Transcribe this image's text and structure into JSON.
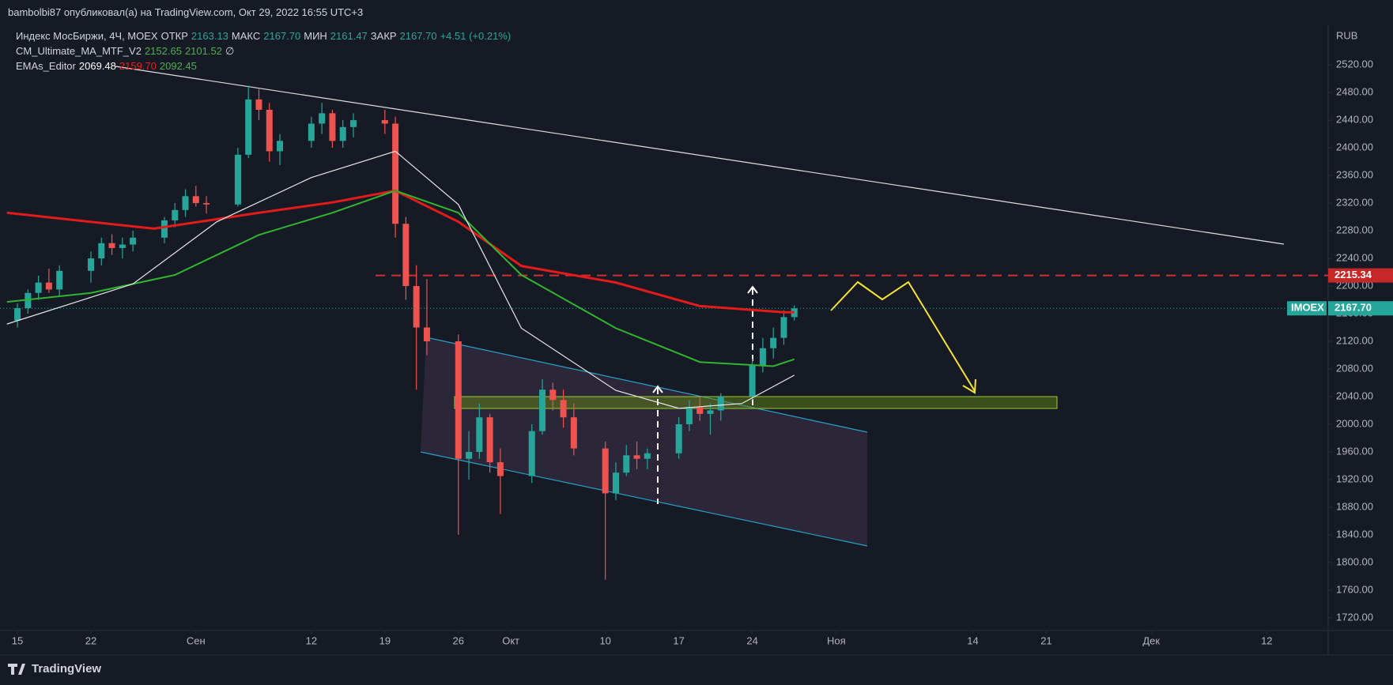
{
  "header": {
    "text": "bambolbi87 опубликовал(а) на TradingView.com, Окт 29, 2022 16:55 UTC+3"
  },
  "footer": {
    "brand": "TradingView"
  },
  "chart_data": {
    "type": "candlestick",
    "legend": [
      [
        {
          "text": "Индекс МосБиржи, 4Ч, MOEX",
          "color": "#d1d4dc"
        },
        {
          "text": "ОТКР",
          "color": "#d1d4dc"
        },
        {
          "text": "2163.13",
          "color": "#26a69a"
        },
        {
          "text": "МАКС",
          "color": "#d1d4dc"
        },
        {
          "text": "2167.70",
          "color": "#26a69a"
        },
        {
          "text": "МИН",
          "color": "#d1d4dc"
        },
        {
          "text": "2161.47",
          "color": "#26a69a"
        },
        {
          "text": "ЗАКР",
          "color": "#d1d4dc"
        },
        {
          "text": "2167.70",
          "color": "#26a69a"
        },
        {
          "text": "+4.51 (+0.21%)",
          "color": "#26a69a"
        }
      ],
      [
        {
          "text": "CM_Ultimate_MA_MTF_V2",
          "color": "#d1d4dc"
        },
        {
          "text": "2152.65",
          "color": "#4caf50"
        },
        {
          "text": "2101.52",
          "color": "#4caf50"
        },
        {
          "text": "∅",
          "color": "#d1d4dc"
        }
      ],
      [
        {
          "text": "EMAs_Editor",
          "color": "#d1d4dc"
        },
        {
          "text": "2069.48",
          "color": "#ffffff"
        },
        {
          "text": "2159.70",
          "color": "#e91e1e"
        },
        {
          "text": "2092.45",
          "color": "#4caf50"
        }
      ]
    ],
    "currency": "RUB",
    "up_color": "#26a69a",
    "down_color": "#ef5350",
    "x": [
      0,
      1,
      2,
      3,
      4,
      7,
      8,
      9,
      10,
      11,
      14,
      15,
      16,
      17,
      18,
      21,
      22,
      23,
      24,
      25,
      28,
      29,
      30,
      31,
      32,
      35,
      36,
      37,
      38,
      39,
      42,
      43,
      44,
      45,
      46,
      49,
      50,
      51,
      52,
      53,
      56,
      57,
      58,
      59,
      60,
      63,
      64,
      65,
      66,
      67,
      70,
      71,
      72,
      73,
      74
    ],
    "open": [
      2150,
      2168,
      2190,
      2205,
      2195,
      2222,
      2240,
      2262,
      2255,
      2260,
      2270,
      2295,
      2310,
      2330,
      2320,
      2318,
      2390,
      2470,
      2455,
      2395,
      2410,
      2435,
      2450,
      2410,
      2430,
      2440,
      2435,
      2290,
      2200,
      2140,
      2120,
      1950,
      1960,
      2010,
      1945,
      1925,
      1990,
      2050,
      2035,
      2010,
      1965,
      1900,
      1930,
      1955,
      1950,
      1958,
      2000,
      2025,
      2015,
      2020,
      2040,
      2085,
      2110,
      2125,
      2155
    ],
    "high": [
      2175,
      2195,
      2215,
      2225,
      2230,
      2250,
      2270,
      2275,
      2270,
      2280,
      2300,
      2320,
      2340,
      2345,
      2330,
      2400,
      2490,
      2485,
      2465,
      2420,
      2445,
      2465,
      2455,
      2440,
      2450,
      2455,
      2445,
      2300,
      2230,
      2210,
      2130,
      1990,
      2030,
      2015,
      1965,
      2000,
      2065,
      2060,
      2050,
      2030,
      1975,
      1945,
      1970,
      1975,
      1965,
      2010,
      2035,
      2040,
      2030,
      2045,
      2095,
      2125,
      2140,
      2165,
      2172
    ],
    "low": [
      2140,
      2160,
      2180,
      2190,
      2185,
      2205,
      2230,
      2245,
      2240,
      2250,
      2262,
      2285,
      2300,
      2315,
      2305,
      2315,
      2385,
      2440,
      2380,
      2375,
      2400,
      2420,
      2400,
      2400,
      2415,
      2420,
      2270,
      2180,
      2050,
      2100,
      1840,
      1920,
      1950,
      1930,
      1870,
      1915,
      1985,
      2020,
      1995,
      1955,
      1775,
      1890,
      1925,
      1935,
      1935,
      1950,
      1990,
      2005,
      1985,
      2005,
      2035,
      2075,
      2095,
      2115,
      2150
    ],
    "close": [
      2168,
      2190,
      2205,
      2195,
      2222,
      2240,
      2262,
      2255,
      2260,
      2270,
      2295,
      2310,
      2330,
      2320,
      2318,
      2390,
      2470,
      2455,
      2395,
      2410,
      2435,
      2450,
      2410,
      2430,
      2440,
      2435,
      2290,
      2200,
      2140,
      2120,
      1950,
      1960,
      2010,
      1945,
      1925,
      1990,
      2050,
      2035,
      2010,
      1965,
      1900,
      1930,
      1955,
      1950,
      1958,
      2000,
      2025,
      2015,
      2020,
      2040,
      2085,
      2110,
      2125,
      2155,
      2167.7
    ],
    "lines": [
      {
        "color": "#e31b1b",
        "x": [
          -1,
          13,
          23,
          30,
          36,
          42,
          48,
          57,
          65,
          73,
          74
        ],
        "values": [
          2306,
          2283,
          2306,
          2321,
          2338,
          2293,
          2229,
          2205,
          2171,
          2162,
          2162
        ]
      },
      {
        "color": "#2fb52f",
        "x": [
          -1,
          7,
          15,
          23,
          30,
          36,
          42,
          48,
          57,
          65,
          72,
          74
        ],
        "values": [
          2177,
          2190,
          2216,
          2274,
          2306,
          2338,
          2306,
          2216,
          2139,
          2090,
          2084,
          2094
        ]
      },
      {
        "color": "#e8e8e8",
        "x": [
          -1,
          11,
          19,
          28,
          36,
          42,
          48,
          57,
          63,
          69,
          74
        ],
        "values": [
          2145,
          2203,
          2293,
          2357,
          2395,
          2318,
          2139,
          2049,
          2023,
          2030,
          2071
        ]
      }
    ],
    "last_price": {
      "value": 2167.7,
      "label": "2167.70"
    },
    "symbol": "IMOEX",
    "level": {
      "value": 2215.34,
      "label": "2215.34"
    },
    "ylim": [
      1705,
      2575
    ],
    "yticks": [
      {
        "value": 1720,
        "label": "1720.00"
      },
      {
        "value": 1760,
        "label": "1760.00"
      },
      {
        "value": 1800,
        "label": "1800.00"
      },
      {
        "value": 1840,
        "label": "1840.00"
      },
      {
        "value": 1880,
        "label": "1880.00"
      },
      {
        "value": 1920,
        "label": "1920.00"
      },
      {
        "value": 1960,
        "label": "1960.00"
      },
      {
        "value": 2000,
        "label": "2000.00"
      },
      {
        "value": 2040,
        "label": "2040.00"
      },
      {
        "value": 2080,
        "label": "2080.00"
      },
      {
        "value": 2120,
        "label": "2120.00"
      },
      {
        "value": 2160,
        "label": "2160.00"
      },
      {
        "value": 2200,
        "label": "2200.00"
      },
      {
        "value": 2240,
        "label": "2240.00"
      },
      {
        "value": 2280,
        "label": "2280.00"
      },
      {
        "value": 2320,
        "label": "2320.00"
      },
      {
        "value": 2360,
        "label": "2360.00"
      },
      {
        "value": 2400,
        "label": "2400.00"
      },
      {
        "value": 2440,
        "label": "2440.00"
      },
      {
        "value": 2480,
        "label": "2480.00"
      },
      {
        "value": 2520,
        "label": "2520.00"
      }
    ],
    "xlim": [
      -1.66,
      124.85
    ],
    "xticks": [
      {
        "value": 0,
        "label": "15"
      },
      {
        "value": 7,
        "label": "22"
      },
      {
        "value": 17,
        "label": "Сен"
      },
      {
        "value": 28,
        "label": "12"
      },
      {
        "value": 35,
        "label": "19"
      },
      {
        "value": 42,
        "label": "26"
      },
      {
        "value": 47,
        "label": "Окт"
      },
      {
        "value": 56,
        "label": "10"
      },
      {
        "value": 63,
        "label": "17"
      },
      {
        "value": 70,
        "label": "24"
      },
      {
        "value": 78,
        "label": "Ноя"
      },
      {
        "value": 91,
        "label": "14"
      },
      {
        "value": 98,
        "label": "21"
      },
      {
        "value": 108,
        "label": "Дек"
      },
      {
        "value": 119,
        "label": "12"
      }
    ]
  }
}
